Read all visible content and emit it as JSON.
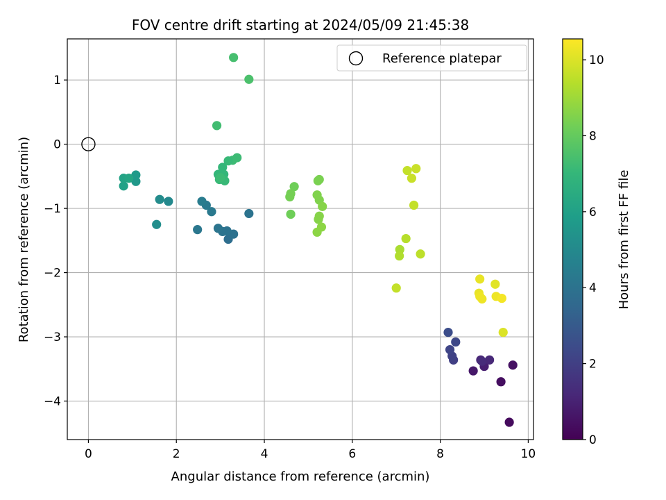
{
  "chart_data": {
    "type": "scatter",
    "title": "FOV centre drift starting at 2024/05/09 21:45:38",
    "xlabel": "Angular distance from reference (arcmin)",
    "ylabel": "Rotation from reference (arcmin)",
    "colorbar_label": "Hours from first FF file",
    "xlim": [
      -0.48,
      10.12
    ],
    "ylim": [
      -4.6,
      1.64
    ],
    "xticks": [
      0,
      2,
      4,
      6,
      8,
      10
    ],
    "yticks": [
      -4,
      -3,
      -2,
      -1,
      0,
      1
    ],
    "colorbar_range": [
      0,
      10.55
    ],
    "colorbar_ticks": [
      0,
      2,
      4,
      6,
      8,
      10
    ],
    "colormap": [
      "#440154",
      "#482878",
      "#3e4989",
      "#31688e",
      "#26828e",
      "#1f9e89",
      "#35b779",
      "#6ece58",
      "#b5de2b",
      "#fde725"
    ],
    "grid": true,
    "legend": {
      "position": "top-right",
      "label": "Reference platepar"
    },
    "reference_point": {
      "x": 0,
      "y": 0
    },
    "points": [
      {
        "x": 9.57,
        "y": -4.33,
        "t": 0.3
      },
      {
        "x": 9.38,
        "y": -3.7,
        "t": 0.4
      },
      {
        "x": 9.65,
        "y": -3.44,
        "t": 0.5
      },
      {
        "x": 8.75,
        "y": -3.53,
        "t": 0.7
      },
      {
        "x": 9.0,
        "y": -3.46,
        "t": 0.9
      },
      {
        "x": 8.92,
        "y": -3.36,
        "t": 1.1
      },
      {
        "x": 9.12,
        "y": -3.36,
        "t": 1.2
      },
      {
        "x": 8.95,
        "y": -3.38,
        "t": 1.3
      },
      {
        "x": 8.3,
        "y": -3.36,
        "t": 2.0
      },
      {
        "x": 8.27,
        "y": -3.3,
        "t": 2.1
      },
      {
        "x": 8.22,
        "y": -3.2,
        "t": 2.2
      },
      {
        "x": 8.35,
        "y": -3.08,
        "t": 2.3
      },
      {
        "x": 8.18,
        "y": -2.93,
        "t": 2.5
      },
      {
        "x": 3.18,
        "y": -1.48,
        "t": 3.8
      },
      {
        "x": 3.3,
        "y": -1.4,
        "t": 3.9
      },
      {
        "x": 3.15,
        "y": -1.35,
        "t": 4.0
      },
      {
        "x": 3.05,
        "y": -1.36,
        "t": 4.0
      },
      {
        "x": 2.95,
        "y": -1.31,
        "t": 4.1
      },
      {
        "x": 2.48,
        "y": -1.33,
        "t": 4.2
      },
      {
        "x": 2.8,
        "y": -1.05,
        "t": 4.3
      },
      {
        "x": 2.68,
        "y": -0.95,
        "t": 4.3
      },
      {
        "x": 2.58,
        "y": -0.89,
        "t": 4.4
      },
      {
        "x": 3.65,
        "y": -1.08,
        "t": 4.0
      },
      {
        "x": 1.82,
        "y": -0.89,
        "t": 5.0
      },
      {
        "x": 1.62,
        "y": -0.86,
        "t": 5.1
      },
      {
        "x": 1.55,
        "y": -1.25,
        "t": 5.2
      },
      {
        "x": 1.08,
        "y": -0.58,
        "t": 5.6
      },
      {
        "x": 1.08,
        "y": -0.48,
        "t": 5.7
      },
      {
        "x": 0.8,
        "y": -0.65,
        "t": 6.0
      },
      {
        "x": 0.8,
        "y": -0.53,
        "t": 6.1
      },
      {
        "x": 0.92,
        "y": -0.53,
        "t": 6.2
      },
      {
        "x": 3.3,
        "y": 1.35,
        "t": 7.4
      },
      {
        "x": 3.65,
        "y": 1.01,
        "t": 7.5
      },
      {
        "x": 2.92,
        "y": 0.29,
        "t": 7.3
      },
      {
        "x": 3.38,
        "y": -0.21,
        "t": 7.2
      },
      {
        "x": 3.28,
        "y": -0.25,
        "t": 7.2
      },
      {
        "x": 3.18,
        "y": -0.26,
        "t": 7.1
      },
      {
        "x": 3.05,
        "y": -0.36,
        "t": 7.0
      },
      {
        "x": 2.95,
        "y": -0.47,
        "t": 7.0
      },
      {
        "x": 3.08,
        "y": -0.47,
        "t": 7.0
      },
      {
        "x": 2.98,
        "y": -0.55,
        "t": 7.1
      },
      {
        "x": 3.1,
        "y": -0.57,
        "t": 7.1
      },
      {
        "x": 3.0,
        "y": -0.52,
        "t": 7.2
      },
      {
        "x": 4.68,
        "y": -0.66,
        "t": 8.2
      },
      {
        "x": 4.6,
        "y": -0.77,
        "t": 8.3
      },
      {
        "x": 4.58,
        "y": -0.82,
        "t": 8.3
      },
      {
        "x": 4.6,
        "y": -1.09,
        "t": 8.2
      },
      {
        "x": 5.25,
        "y": -0.55,
        "t": 8.4
      },
      {
        "x": 5.22,
        "y": -0.57,
        "t": 8.4
      },
      {
        "x": 5.2,
        "y": -0.79,
        "t": 8.5
      },
      {
        "x": 5.25,
        "y": -0.87,
        "t": 8.5
      },
      {
        "x": 5.32,
        "y": -0.97,
        "t": 8.6
      },
      {
        "x": 5.25,
        "y": -1.12,
        "t": 8.6
      },
      {
        "x": 5.23,
        "y": -1.17,
        "t": 8.6
      },
      {
        "x": 5.3,
        "y": -1.29,
        "t": 8.7
      },
      {
        "x": 5.2,
        "y": -1.37,
        "t": 8.7
      },
      {
        "x": 7.25,
        "y": -0.41,
        "t": 9.6
      },
      {
        "x": 7.45,
        "y": -0.38,
        "t": 9.7
      },
      {
        "x": 7.35,
        "y": -0.53,
        "t": 9.7
      },
      {
        "x": 7.4,
        "y": -0.95,
        "t": 9.6
      },
      {
        "x": 7.22,
        "y": -1.47,
        "t": 9.4
      },
      {
        "x": 7.08,
        "y": -1.64,
        "t": 9.2
      },
      {
        "x": 7.07,
        "y": -1.74,
        "t": 9.3
      },
      {
        "x": 7.55,
        "y": -1.71,
        "t": 9.5
      },
      {
        "x": 7.0,
        "y": -2.24,
        "t": 9.6
      },
      {
        "x": 8.9,
        "y": -2.1,
        "t": 10.2
      },
      {
        "x": 9.25,
        "y": -2.18,
        "t": 10.1
      },
      {
        "x": 8.88,
        "y": -2.32,
        "t": 10.2
      },
      {
        "x": 8.9,
        "y": -2.37,
        "t": 10.3
      },
      {
        "x": 8.95,
        "y": -2.41,
        "t": 10.3
      },
      {
        "x": 9.27,
        "y": -2.37,
        "t": 10.3
      },
      {
        "x": 9.4,
        "y": -2.4,
        "t": 10.4
      },
      {
        "x": 9.43,
        "y": -2.93,
        "t": 10.0
      }
    ]
  }
}
